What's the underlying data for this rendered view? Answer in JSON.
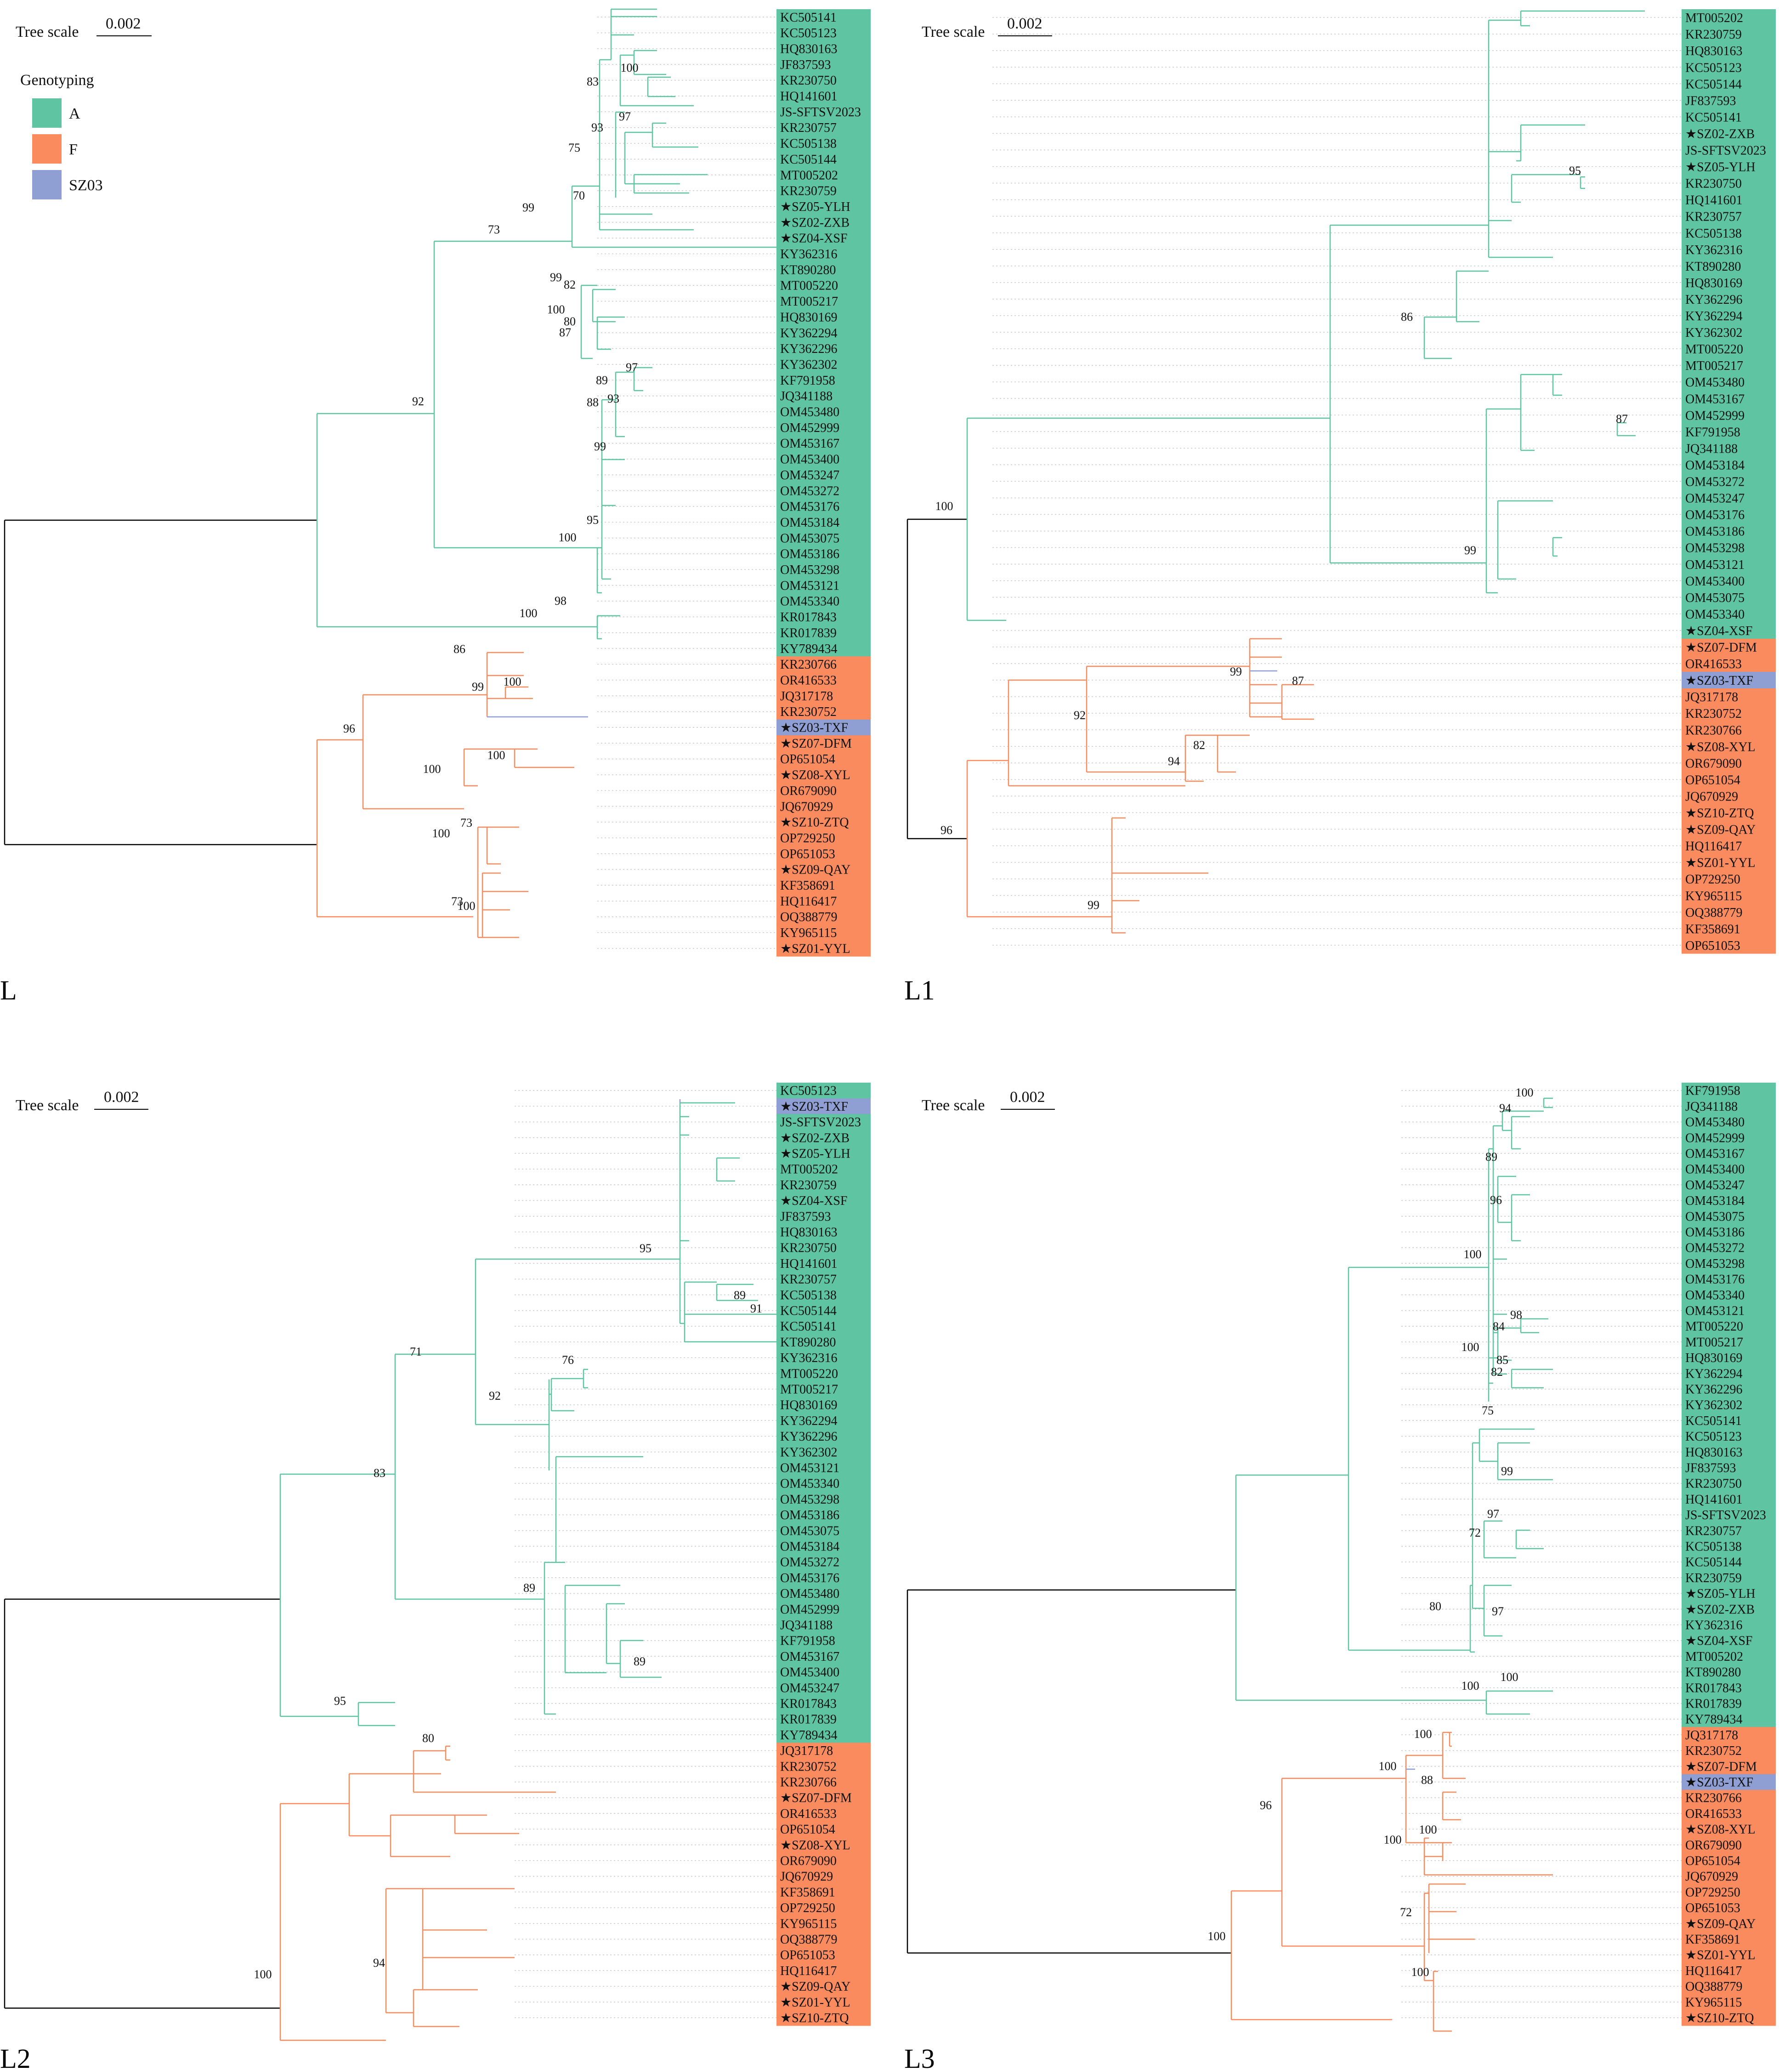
{
  "figure": {
    "tree_scale_label": "Tree scale",
    "tree_scale_value": "0.002",
    "legend": {
      "title": "Genotyping",
      "items": [
        {
          "label": "A",
          "color": "#5fc4a2"
        },
        {
          "label": "F",
          "color": "#f98b5f"
        },
        {
          "label": "SZ03",
          "color": "#8f9ed3"
        }
      ]
    },
    "colors": {
      "A": "#5fc4a2",
      "F": "#f98b5f",
      "SZ03": "#8f9ed3",
      "root": "#000000",
      "dotted": "#c8c8c8"
    }
  },
  "panels": [
    {
      "title": "L",
      "tips": [
        {
          "label": "KC505141",
          "g": "A"
        },
        {
          "label": "KC505123",
          "g": "A"
        },
        {
          "label": "HQ830163",
          "g": "A"
        },
        {
          "label": "JF837593",
          "g": "A"
        },
        {
          "label": "KR230750",
          "g": "A"
        },
        {
          "label": "HQ141601",
          "g": "A"
        },
        {
          "label": "JS-SFTSV2023",
          "g": "A"
        },
        {
          "label": "KR230757",
          "g": "A"
        },
        {
          "label": "KC505138",
          "g": "A"
        },
        {
          "label": "KC505144",
          "g": "A"
        },
        {
          "label": "MT005202",
          "g": "A"
        },
        {
          "label": "KR230759",
          "g": "A"
        },
        {
          "label": "★SZ05-YLH",
          "g": "A"
        },
        {
          "label": "★SZ02-ZXB",
          "g": "A"
        },
        {
          "label": "★SZ04-XSF",
          "g": "A"
        },
        {
          "label": "KY362316",
          "g": "A"
        },
        {
          "label": "KT890280",
          "g": "A"
        },
        {
          "label": "MT005220",
          "g": "A"
        },
        {
          "label": "MT005217",
          "g": "A"
        },
        {
          "label": "HQ830169",
          "g": "A"
        },
        {
          "label": "KY362294",
          "g": "A"
        },
        {
          "label": "KY362296",
          "g": "A"
        },
        {
          "label": "KY362302",
          "g": "A"
        },
        {
          "label": "KF791958",
          "g": "A"
        },
        {
          "label": "JQ341188",
          "g": "A"
        },
        {
          "label": "OM453480",
          "g": "A"
        },
        {
          "label": "OM452999",
          "g": "A"
        },
        {
          "label": "OM453167",
          "g": "A"
        },
        {
          "label": "OM453400",
          "g": "A"
        },
        {
          "label": "OM453247",
          "g": "A"
        },
        {
          "label": "OM453272",
          "g": "A"
        },
        {
          "label": "OM453176",
          "g": "A"
        },
        {
          "label": "OM453184",
          "g": "A"
        },
        {
          "label": "OM453075",
          "g": "A"
        },
        {
          "label": "OM453186",
          "g": "A"
        },
        {
          "label": "OM453298",
          "g": "A"
        },
        {
          "label": "OM453121",
          "g": "A"
        },
        {
          "label": "OM453340",
          "g": "A"
        },
        {
          "label": "KR017843",
          "g": "A"
        },
        {
          "label": "KR017839",
          "g": "A"
        },
        {
          "label": "KY789434",
          "g": "A"
        },
        {
          "label": "KR230766",
          "g": "F"
        },
        {
          "label": "OR416533",
          "g": "F"
        },
        {
          "label": "JQ317178",
          "g": "F"
        },
        {
          "label": "KR230752",
          "g": "F"
        },
        {
          "label": "★SZ03-TXF",
          "g": "SZ03"
        },
        {
          "label": "★SZ07-DFM",
          "g": "F"
        },
        {
          "label": "OP651054",
          "g": "F"
        },
        {
          "label": "★SZ08-XYL",
          "g": "F"
        },
        {
          "label": "OR679090",
          "g": "F"
        },
        {
          "label": "JQ670929",
          "g": "F"
        },
        {
          "label": "★SZ10-ZTQ",
          "g": "F"
        },
        {
          "label": "OP729250",
          "g": "F"
        },
        {
          "label": "OP651053",
          "g": "F"
        },
        {
          "label": "★SZ09-QAY",
          "g": "F"
        },
        {
          "label": "KF358691",
          "g": "F"
        },
        {
          "label": "HQ116417",
          "g": "F"
        },
        {
          "label": "OQ388779",
          "g": "F"
        },
        {
          "label": "KY965115",
          "g": "F"
        },
        {
          "label": "★SZ01-YYL",
          "g": "F"
        }
      ],
      "supports": [
        "100",
        "83",
        "97",
        "93",
        "75",
        "70",
        "99",
        "73",
        "99",
        "82",
        "100",
        "80",
        "87",
        "92",
        "97",
        "89",
        "88",
        "93",
        "99",
        "95",
        "100",
        "98",
        "100",
        "86",
        "100",
        "99",
        "96",
        "100",
        "100",
        "100",
        "73",
        "73",
        "100"
      ]
    },
    {
      "title": "L1",
      "tips": [
        {
          "label": "MT005202",
          "g": "A"
        },
        {
          "label": "KR230759",
          "g": "A"
        },
        {
          "label": "HQ830163",
          "g": "A"
        },
        {
          "label": "KC505123",
          "g": "A"
        },
        {
          "label": "KC505144",
          "g": "A"
        },
        {
          "label": "JF837593",
          "g": "A"
        },
        {
          "label": "KC505141",
          "g": "A"
        },
        {
          "label": "★SZ02-ZXB",
          "g": "A"
        },
        {
          "label": "JS-SFTSV2023",
          "g": "A"
        },
        {
          "label": "★SZ05-YLH",
          "g": "A"
        },
        {
          "label": "KR230750",
          "g": "A"
        },
        {
          "label": "HQ141601",
          "g": "A"
        },
        {
          "label": "KR230757",
          "g": "A"
        },
        {
          "label": "KC505138",
          "g": "A"
        },
        {
          "label": "KY362316",
          "g": "A"
        },
        {
          "label": "KT890280",
          "g": "A"
        },
        {
          "label": "HQ830169",
          "g": "A"
        },
        {
          "label": "KY362296",
          "g": "A"
        },
        {
          "label": "KY362294",
          "g": "A"
        },
        {
          "label": "KY362302",
          "g": "A"
        },
        {
          "label": "MT005220",
          "g": "A"
        },
        {
          "label": "MT005217",
          "g": "A"
        },
        {
          "label": "OM453480",
          "g": "A"
        },
        {
          "label": "OM453167",
          "g": "A"
        },
        {
          "label": "OM452999",
          "g": "A"
        },
        {
          "label": "KF791958",
          "g": "A"
        },
        {
          "label": "JQ341188",
          "g": "A"
        },
        {
          "label": "OM453184",
          "g": "A"
        },
        {
          "label": "OM453272",
          "g": "A"
        },
        {
          "label": "OM453247",
          "g": "A"
        },
        {
          "label": "OM453176",
          "g": "A"
        },
        {
          "label": "OM453186",
          "g": "A"
        },
        {
          "label": "OM453298",
          "g": "A"
        },
        {
          "label": "OM453121",
          "g": "A"
        },
        {
          "label": "OM453400",
          "g": "A"
        },
        {
          "label": "OM453075",
          "g": "A"
        },
        {
          "label": "OM453340",
          "g": "A"
        },
        {
          "label": "★SZ04-XSF",
          "g": "A"
        },
        {
          "label": "★SZ07-DFM",
          "g": "F"
        },
        {
          "label": "OR416533",
          "g": "F"
        },
        {
          "label": "★SZ03-TXF",
          "g": "SZ03"
        },
        {
          "label": "JQ317178",
          "g": "F"
        },
        {
          "label": "KR230752",
          "g": "F"
        },
        {
          "label": "KR230766",
          "g": "F"
        },
        {
          "label": "★SZ08-XYL",
          "g": "F"
        },
        {
          "label": "OR679090",
          "g": "F"
        },
        {
          "label": "OP651054",
          "g": "F"
        },
        {
          "label": "JQ670929",
          "g": "F"
        },
        {
          "label": "★SZ10-ZTQ",
          "g": "F"
        },
        {
          "label": "★SZ09-QAY",
          "g": "F"
        },
        {
          "label": "HQ116417",
          "g": "F"
        },
        {
          "label": "★SZ01-YYL",
          "g": "F"
        },
        {
          "label": "OP729250",
          "g": "F"
        },
        {
          "label": "KY965115",
          "g": "F"
        },
        {
          "label": "OQ388779",
          "g": "F"
        },
        {
          "label": "KF358691",
          "g": "F"
        },
        {
          "label": "OP651053",
          "g": "F"
        }
      ],
      "supports": [
        "95",
        "86",
        "87",
        "99",
        "100",
        "99",
        "87",
        "92",
        "94",
        "82",
        "96",
        "99"
      ]
    },
    {
      "title": "L2",
      "tips": [
        {
          "label": "KC505123",
          "g": "A"
        },
        {
          "label": "★SZ03-TXF",
          "g": "SZ03"
        },
        {
          "label": "JS-SFTSV2023",
          "g": "A"
        },
        {
          "label": "★SZ02-ZXB",
          "g": "A"
        },
        {
          "label": "★SZ05-YLH",
          "g": "A"
        },
        {
          "label": "MT005202",
          "g": "A"
        },
        {
          "label": "KR230759",
          "g": "A"
        },
        {
          "label": "★SZ04-XSF",
          "g": "A"
        },
        {
          "label": "JF837593",
          "g": "A"
        },
        {
          "label": "HQ830163",
          "g": "A"
        },
        {
          "label": "KR230750",
          "g": "A"
        },
        {
          "label": "HQ141601",
          "g": "A"
        },
        {
          "label": "KR230757",
          "g": "A"
        },
        {
          "label": "KC505138",
          "g": "A"
        },
        {
          "label": "KC505144",
          "g": "A"
        },
        {
          "label": "KC505141",
          "g": "A"
        },
        {
          "label": "KT890280",
          "g": "A"
        },
        {
          "label": "KY362316",
          "g": "A"
        },
        {
          "label": "MT005220",
          "g": "A"
        },
        {
          "label": "MT005217",
          "g": "A"
        },
        {
          "label": "HQ830169",
          "g": "A"
        },
        {
          "label": "KY362294",
          "g": "A"
        },
        {
          "label": "KY362296",
          "g": "A"
        },
        {
          "label": "KY362302",
          "g": "A"
        },
        {
          "label": "OM453121",
          "g": "A"
        },
        {
          "label": "OM453340",
          "g": "A"
        },
        {
          "label": "OM453298",
          "g": "A"
        },
        {
          "label": "OM453186",
          "g": "A"
        },
        {
          "label": "OM453075",
          "g": "A"
        },
        {
          "label": "OM453184",
          "g": "A"
        },
        {
          "label": "OM453272",
          "g": "A"
        },
        {
          "label": "OM453176",
          "g": "A"
        },
        {
          "label": "OM453480",
          "g": "A"
        },
        {
          "label": "OM452999",
          "g": "A"
        },
        {
          "label": "JQ341188",
          "g": "A"
        },
        {
          "label": "KF791958",
          "g": "A"
        },
        {
          "label": "OM453167",
          "g": "A"
        },
        {
          "label": "OM453400",
          "g": "A"
        },
        {
          "label": "OM453247",
          "g": "A"
        },
        {
          "label": "KR017843",
          "g": "A"
        },
        {
          "label": "KR017839",
          "g": "A"
        },
        {
          "label": "KY789434",
          "g": "A"
        },
        {
          "label": "JQ317178",
          "g": "F"
        },
        {
          "label": "KR230752",
          "g": "F"
        },
        {
          "label": "KR230766",
          "g": "F"
        },
        {
          "label": "★SZ07-DFM",
          "g": "F"
        },
        {
          "label": "OR416533",
          "g": "F"
        },
        {
          "label": "OP651054",
          "g": "F"
        },
        {
          "label": "★SZ08-XYL",
          "g": "F"
        },
        {
          "label": "OR679090",
          "g": "F"
        },
        {
          "label": "JQ670929",
          "g": "F"
        },
        {
          "label": "KF358691",
          "g": "F"
        },
        {
          "label": "OP729250",
          "g": "F"
        },
        {
          "label": "KY965115",
          "g": "F"
        },
        {
          "label": "OQ388779",
          "g": "F"
        },
        {
          "label": "OP651053",
          "g": "F"
        },
        {
          "label": "HQ116417",
          "g": "F"
        },
        {
          "label": "★SZ09-QAY",
          "g": "F"
        },
        {
          "label": "★SZ01-YYL",
          "g": "F"
        },
        {
          "label": "★SZ10-ZTQ",
          "g": "F"
        }
      ],
      "supports": [
        "89",
        "91",
        "95",
        "71",
        "76",
        "92",
        "83",
        "89",
        "89",
        "95",
        "80",
        "94",
        "100"
      ]
    },
    {
      "title": "L3",
      "tips": [
        {
          "label": "KF791958",
          "g": "A"
        },
        {
          "label": "JQ341188",
          "g": "A"
        },
        {
          "label": "OM453480",
          "g": "A"
        },
        {
          "label": "OM452999",
          "g": "A"
        },
        {
          "label": "OM453167",
          "g": "A"
        },
        {
          "label": "OM453400",
          "g": "A"
        },
        {
          "label": "OM453247",
          "g": "A"
        },
        {
          "label": "OM453184",
          "g": "A"
        },
        {
          "label": "OM453075",
          "g": "A"
        },
        {
          "label": "OM453186",
          "g": "A"
        },
        {
          "label": "OM453272",
          "g": "A"
        },
        {
          "label": "OM453298",
          "g": "A"
        },
        {
          "label": "OM453176",
          "g": "A"
        },
        {
          "label": "OM453340",
          "g": "A"
        },
        {
          "label": "OM453121",
          "g": "A"
        },
        {
          "label": "MT005220",
          "g": "A"
        },
        {
          "label": "MT005217",
          "g": "A"
        },
        {
          "label": "HQ830169",
          "g": "A"
        },
        {
          "label": "KY362294",
          "g": "A"
        },
        {
          "label": "KY362296",
          "g": "A"
        },
        {
          "label": "KY362302",
          "g": "A"
        },
        {
          "label": "KC505141",
          "g": "A"
        },
        {
          "label": "KC505123",
          "g": "A"
        },
        {
          "label": "HQ830163",
          "g": "A"
        },
        {
          "label": "JF837593",
          "g": "A"
        },
        {
          "label": "KR230750",
          "g": "A"
        },
        {
          "label": "HQ141601",
          "g": "A"
        },
        {
          "label": "JS-SFTSV2023",
          "g": "A"
        },
        {
          "label": "KR230757",
          "g": "A"
        },
        {
          "label": "KC505138",
          "g": "A"
        },
        {
          "label": "KC505144",
          "g": "A"
        },
        {
          "label": "KR230759",
          "g": "A"
        },
        {
          "label": "★SZ05-YLH",
          "g": "A"
        },
        {
          "label": "★SZ02-ZXB",
          "g": "A"
        },
        {
          "label": "KY362316",
          "g": "A"
        },
        {
          "label": "★SZ04-XSF",
          "g": "A"
        },
        {
          "label": "MT005202",
          "g": "A"
        },
        {
          "label": "KT890280",
          "g": "A"
        },
        {
          "label": "KR017843",
          "g": "A"
        },
        {
          "label": "KR017839",
          "g": "A"
        },
        {
          "label": "KY789434",
          "g": "A"
        },
        {
          "label": "JQ317178",
          "g": "F"
        },
        {
          "label": "KR230752",
          "g": "F"
        },
        {
          "label": "★SZ07-DFM",
          "g": "F"
        },
        {
          "label": "★SZ03-TXF",
          "g": "SZ03"
        },
        {
          "label": "KR230766",
          "g": "F"
        },
        {
          "label": "OR416533",
          "g": "F"
        },
        {
          "label": "★SZ08-XYL",
          "g": "F"
        },
        {
          "label": "OR679090",
          "g": "F"
        },
        {
          "label": "OP651054",
          "g": "F"
        },
        {
          "label": "JQ670929",
          "g": "F"
        },
        {
          "label": "OP729250",
          "g": "F"
        },
        {
          "label": "OP651053",
          "g": "F"
        },
        {
          "label": "★SZ09-QAY",
          "g": "F"
        },
        {
          "label": "KF358691",
          "g": "F"
        },
        {
          "label": "★SZ01-YYL",
          "g": "F"
        },
        {
          "label": "HQ116417",
          "g": "F"
        },
        {
          "label": "OQ388779",
          "g": "F"
        },
        {
          "label": "KY965115",
          "g": "F"
        },
        {
          "label": "★SZ10-ZTQ",
          "g": "F"
        }
      ],
      "supports": [
        "100",
        "94",
        "89",
        "96",
        "100",
        "98",
        "84",
        "100",
        "85",
        "82",
        "75",
        "99",
        "97",
        "72",
        "97",
        "80",
        "100",
        "100",
        "100",
        "100",
        "88",
        "96",
        "100",
        "100",
        "100",
        "72",
        "100"
      ]
    }
  ]
}
